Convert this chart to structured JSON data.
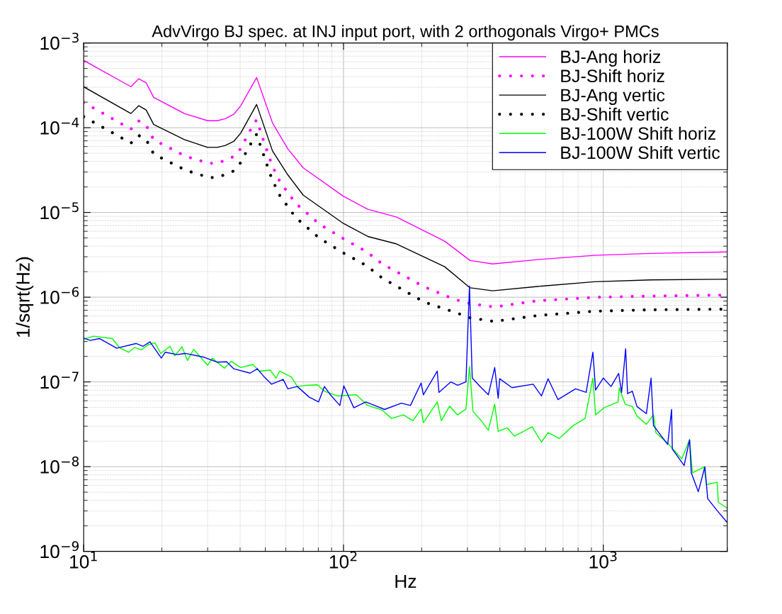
{
  "chart_data": {
    "type": "line",
    "title": "AdvVirgo BJ spec. at INJ input port, with 2 orthogonals Virgo+ PMCs",
    "xlabel": "Hz",
    "ylabel": "1/sqrt(Hz)",
    "log": "xy",
    "grid": true,
    "legend": "top right",
    "xlim": [
      10,
      3000
    ],
    "ylim": [
      1e-09,
      0.001
    ],
    "xticks": [
      {
        "value": 10,
        "label": "10$^{1}$"
      },
      {
        "value": 100,
        "label": "10$^{2}$"
      },
      {
        "value": 1000,
        "label": "10$^{3}$"
      }
    ],
    "yticks": [
      {
        "value": 1e-09,
        "label": "10$^{−9}$"
      },
      {
        "value": 1e-08,
        "label": "10$^{−8}$"
      },
      {
        "value": 1e-07,
        "label": "10$^{−7}$"
      },
      {
        "value": 1e-06,
        "label": "10$^{−6}$"
      },
      {
        "value": 1e-05,
        "label": "10$^{−5}$"
      },
      {
        "value": 0.0001,
        "label": "10$^{−4}$"
      },
      {
        "value": 0.001,
        "label": "10$^{−3}$"
      }
    ],
    "series": [
      {
        "name": "BJ-Ang horiz",
        "color": "#ff00ff",
        "line_style": "solid",
        "x": [
          10,
          15.2,
          16.3,
          17.4,
          18.6,
          24.4,
          30.0,
          32.7,
          35.1,
          37.8,
          40.2,
          46.3,
          53.3,
          61.1,
          70,
          100,
          124,
          160,
          245,
          307,
          375,
          560,
          925,
          1527,
          3000
        ],
        "values": [
          0.000623,
          0.000305,
          0.000378,
          0.000339,
          0.000228,
          0.000147,
          0.000121,
          0.000121,
          0.000128,
          0.000144,
          0.000181,
          0.000391,
          0.000114,
          5.61e-05,
          3.36e-05,
          1.55e-05,
          1.09e-05,
          8.83e-06,
          4.58e-06,
          2.71e-06,
          2.47e-06,
          2.78e-06,
          3.12e-06,
          3.29e-06,
          3.42e-06
        ]
      },
      {
        "name": "BJ-Shift horiz",
        "color": "#ff00ff",
        "line_style": "dotted",
        "x": [
          10,
          15.2,
          16.3,
          17.4,
          18.6,
          24.7,
          30.4,
          32.7,
          37.5,
          40.2,
          43.1,
          46.3,
          49.6,
          53.1,
          56.9,
          65.5,
          80.7,
          100,
          122.6,
          141,
          205,
          267,
          307,
          380,
          560,
          925,
          1527,
          2930
        ],
        "values": [
          0.000199,
          9.62e-05,
          0.00012,
          0.000107,
          7.21e-05,
          4.6e-05,
          3.8e-05,
          3.8e-05,
          4.51e-05,
          5.64e-05,
          8.57e-05,
          0.000124,
          6.58e-05,
          3.6e-05,
          2.31e-05,
          1.28e-05,
          7.31e-06,
          4.89e-06,
          3.45e-06,
          2.47e-06,
          1.32e-06,
          9.44e-07,
          8.41e-07,
          7.66e-07,
          9.08e-07,
          9.96e-07,
          1.03e-06,
          1.06e-06
        ]
      },
      {
        "name": "BJ-Ang vertic",
        "color": "#000000",
        "line_style": "solid",
        "x": [
          10,
          15.2,
          16.3,
          17.4,
          18.6,
          24.4,
          30.0,
          32.7,
          35.1,
          37.8,
          40.2,
          46.3,
          53.3,
          61.1,
          70,
          100,
          124,
          160,
          245,
          307,
          375,
          560,
          925,
          1527,
          3000
        ],
        "values": [
          0.000304,
          0.000147,
          0.000182,
          0.000162,
          0.000109,
          7.25e-05,
          5.86e-05,
          5.86e-05,
          6.18e-05,
          6.89e-05,
          8.62e-05,
          0.000188,
          5.32e-05,
          2.77e-05,
          1.6e-05,
          7.41e-06,
          5.21e-06,
          4.25e-06,
          2.29e-06,
          1.29e-06,
          1.19e-06,
          1.34e-06,
          1.52e-06,
          1.6e-06,
          1.63e-06
        ]
      },
      {
        "name": "BJ-Shift vertic",
        "color": "#000000",
        "line_style": "dotted",
        "x": [
          10,
          15.2,
          16.3,
          17.4,
          18.6,
          24.7,
          30.4,
          32.7,
          37.5,
          40.2,
          43.1,
          46.3,
          49.6,
          53.1,
          56.9,
          65.5,
          80.7,
          100,
          122.6,
          141,
          205,
          267,
          307,
          380,
          560,
          925,
          1527,
          2930
        ],
        "values": [
          0.000135,
          6.58e-05,
          8.09e-05,
          7.25e-05,
          4.88e-05,
          3.15e-05,
          2.58e-05,
          2.58e-05,
          3.05e-05,
          3.86e-05,
          5.83e-05,
          8.36e-05,
          4.48e-05,
          2.45e-05,
          1.58e-05,
          8.71e-06,
          4.98e-06,
          3.32e-06,
          2.36e-06,
          1.68e-06,
          8.73e-07,
          6.67e-07,
          5.71e-07,
          5.17e-07,
          6.08e-07,
          6.83e-07,
          7.1e-07,
          7.21e-07
        ]
      },
      {
        "name": "BJ-100W Shift horiz",
        "color": "#00ff00",
        "line_style": "solid",
        "x": [
          10,
          10.9,
          12.9,
          13.7,
          14.9,
          15.7,
          16.7,
          17.6,
          18.8,
          19.8,
          21.5,
          22.4,
          23.9,
          25.1,
          26.5,
          30.0,
          31.3,
          34.8,
          37.0,
          40.2,
          44.7,
          47.6,
          52.2,
          55.0,
          56.8,
          63.1,
          66.4,
          72.2,
          79.4,
          84.5,
          94.8,
          112,
          124,
          141,
          153,
          170,
          185,
          199,
          203,
          229.6,
          238,
          256,
          275,
          296,
          305.5,
          315,
          339,
          361,
          382,
          394,
          427,
          455,
          494,
          532,
          578,
          613,
          676,
          767,
          851,
          912,
          934,
          1006,
          1140,
          1152,
          1214,
          1293,
          1348,
          1465,
          1560,
          1593,
          1769,
          2005,
          2148,
          2203,
          2443,
          2495,
          2742,
          2773,
          3000
        ],
        "values": [
          3.19e-07,
          3.47e-07,
          3.25e-07,
          2.55e-07,
          2.24e-07,
          2.55e-07,
          2.39e-07,
          2.72e-07,
          2.9e-07,
          2.17e-07,
          2.63e-07,
          2.03e-07,
          2.59e-07,
          1.79e-07,
          2.42e-07,
          1.57e-07,
          1.91e-07,
          1.45e-07,
          1.75e-07,
          1.48e-07,
          1.6e-07,
          1.34e-07,
          1.38e-07,
          1.11e-07,
          1.34e-07,
          1.14e-07,
          8.83e-08,
          9.12e-08,
          9.23e-08,
          7.76e-08,
          6.83e-08,
          7.05e-08,
          5.27e-08,
          4.65e-08,
          3.71e-08,
          4.08e-08,
          3.48e-08,
          4.79e-08,
          3.3e-08,
          5.81e-08,
          3.48e-08,
          5.18e-08,
          4.08e-08,
          4.79e-08,
          1.52e-07,
          4.5e-08,
          3.48e-08,
          2.69e-08,
          5.45e-08,
          2.61e-08,
          2.87e-08,
          2.29e-08,
          2.61e-08,
          2.96e-08,
          1.95e-08,
          2.52e-08,
          2.15e-08,
          3.06e-08,
          3.71e-08,
          1.11e-07,
          4.08e-08,
          4.95e-08,
          5.81e-08,
          8.53e-08,
          5.45e-08,
          5.12e-08,
          3.95e-08,
          3.16e-08,
          4.08e-08,
          2.52e-08,
          1.89e-08,
          1.24e-08,
          2.08e-08,
          8.45e-09,
          9.93e-09,
          6.14e-09,
          6.55e-09,
          3.79e-09,
          3.23e-09
        ]
      },
      {
        "name": "BJ-100W Shift vertic",
        "color": "#0000ff",
        "line_style": "solid",
        "x": [
          10,
          10.6,
          11.5,
          13.4,
          15.9,
          16.9,
          18.0,
          19.9,
          20.6,
          22.9,
          24.6,
          28.8,
          32.7,
          35.5,
          37.8,
          43.7,
          46.6,
          49.6,
          52.8,
          58.6,
          61.1,
          66.4,
          73.8,
          80.2,
          84.5,
          89.0,
          96.8,
          100.3,
          109.6,
          121.8,
          135,
          144,
          167,
          181,
          199,
          203,
          229.6,
          233,
          258.6,
          275,
          296,
          305.5,
          313,
          339,
          361,
          382,
          394,
          399,
          445,
          537,
          578,
          613,
          669,
          782,
          859,
          912,
          934,
          1000,
          1071,
          1146,
          1176,
          1219,
          1240,
          1293,
          1348,
          1465,
          1527,
          1560,
          1769,
          1832,
          1844,
          2047,
          2148,
          2181,
          2321,
          2460,
          2523,
          2742,
          3000
        ],
        "values": [
          3.29e-07,
          3.09e-07,
          3.25e-07,
          2.5e-07,
          2.84e-07,
          2.63e-07,
          2.97e-07,
          1.91e-07,
          2.24e-07,
          2.1e-07,
          2.17e-07,
          1.97e-07,
          1.71e-07,
          1.73e-07,
          1.43e-07,
          1.27e-07,
          1.43e-07,
          1.14e-07,
          9.4e-08,
          1.07e-07,
          8.28e-08,
          8.83e-08,
          6.61e-08,
          5.81e-08,
          8.83e-08,
          7.05e-08,
          5.27e-08,
          8.99e-08,
          4.95e-08,
          5.81e-08,
          5.12e-08,
          4.73e-08,
          5.62e-08,
          5.27e-08,
          9.7e-08,
          7.05e-08,
          1.34e-07,
          7.52e-08,
          1e-07,
          9.12e-08,
          1e-07,
          1.35e-06,
          1.11e-07,
          8.55e-08,
          7.05e-08,
          1.48e-07,
          6.4e-08,
          1.09e-07,
          8.55e-08,
          9.4e-08,
          6.83e-08,
          1.09e-07,
          6.19e-08,
          8.28e-08,
          7.52e-08,
          2.24e-07,
          8.02e-08,
          1.11e-07,
          8.83e-08,
          1.26e-07,
          7.52e-08,
          2.46e-07,
          7.28e-08,
          7.76e-08,
          5.12e-08,
          4.22e-08,
          1.11e-07,
          3.06e-08,
          1.83e-08,
          4.73e-08,
          1.61e-08,
          1.03e-08,
          2.08e-08,
          8.45e-09,
          5.07e-09,
          9.93e-09,
          4.18e-09,
          3.03e-09,
          2.19e-09
        ]
      }
    ]
  }
}
